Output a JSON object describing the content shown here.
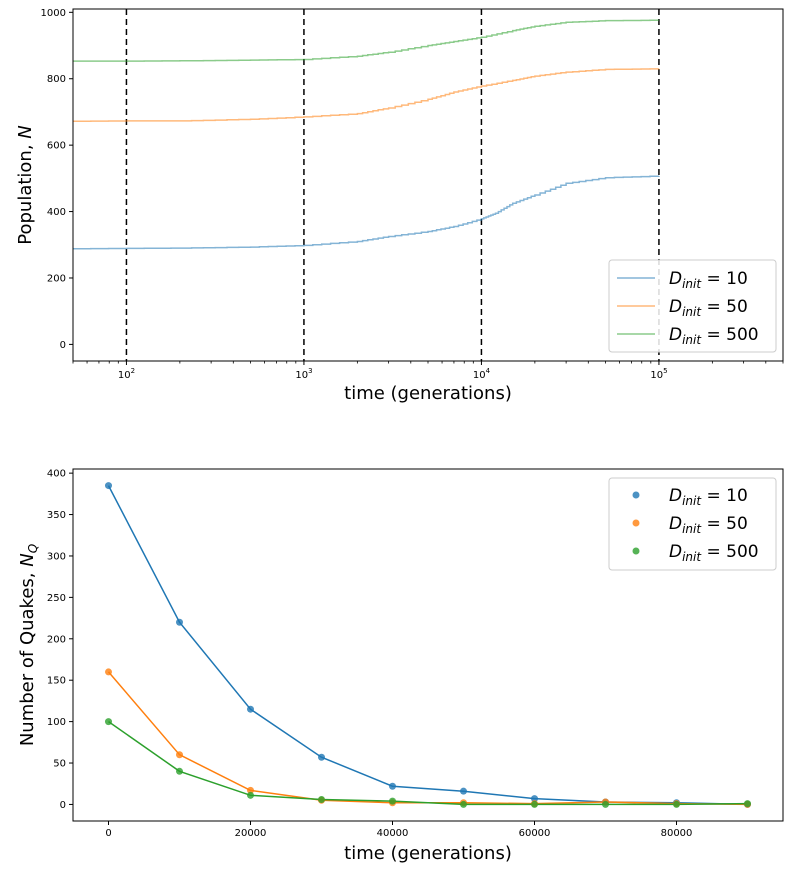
{
  "chart_data": [
    {
      "type": "line",
      "xscale": "log",
      "xlabel": "time (generations)",
      "ylabel": "Population, N",
      "xlim": [
        50,
        500000
      ],
      "ylim": [
        -50,
        1010
      ],
      "xticks": [
        {
          "value": 100,
          "base": "10",
          "exp": "2"
        },
        {
          "value": 1000,
          "base": "10",
          "exp": "3"
        },
        {
          "value": 10000,
          "base": "10",
          "exp": "4"
        },
        {
          "value": 100000,
          "base": "10",
          "exp": "5"
        }
      ],
      "yticks": [
        0,
        200,
        400,
        600,
        800,
        1000
      ],
      "vlines": [
        100,
        1000,
        10000,
        100000
      ],
      "grid": false,
      "legend": {
        "position": "lower-right"
      },
      "series": [
        {
          "name": "D_init = 10",
          "legend_sub": "init",
          "legend_value": "10",
          "color": "#1f77b4",
          "x": [
            50,
            100,
            200,
            500,
            1000,
            2000,
            3000,
            5000,
            7000,
            10000,
            12000,
            15000,
            20000,
            30000,
            50000,
            100000
          ],
          "y": [
            288,
            289,
            290,
            293,
            298,
            310,
            325,
            340,
            355,
            378,
            395,
            425,
            450,
            485,
            502,
            507
          ]
        },
        {
          "name": "D_init = 50",
          "legend_sub": "init",
          "legend_value": "50",
          "color": "#ff7f0e",
          "x": [
            50,
            100,
            200,
            500,
            1000,
            2000,
            3000,
            5000,
            7000,
            10000,
            15000,
            20000,
            30000,
            50000,
            100000
          ],
          "y": [
            672,
            673,
            673,
            678,
            685,
            695,
            712,
            738,
            760,
            778,
            795,
            808,
            820,
            828,
            830
          ]
        },
        {
          "name": "D_init = 500",
          "legend_sub": "init",
          "legend_value": "500",
          "color": "#2ca02c",
          "x": [
            50,
            100,
            200,
            500,
            1000,
            2000,
            3000,
            5000,
            7000,
            10000,
            15000,
            20000,
            30000,
            50000,
            100000
          ],
          "y": [
            853,
            853,
            854,
            856,
            858,
            868,
            880,
            900,
            912,
            925,
            945,
            958,
            970,
            975,
            976
          ]
        }
      ]
    },
    {
      "type": "line",
      "markers": true,
      "xlabel": "time (generations)",
      "ylabel": "Number of Quakes, N",
      "ylabel_sub": "Q",
      "xlim": [
        -5000,
        95000
      ],
      "ylim": [
        -20,
        405
      ],
      "xticks": [
        0,
        20000,
        40000,
        60000,
        80000
      ],
      "yticks": [
        0,
        50,
        100,
        150,
        200,
        250,
        300,
        350,
        400
      ],
      "grid": false,
      "legend": {
        "position": "top-right"
      },
      "x": [
        0,
        10000,
        20000,
        30000,
        40000,
        50000,
        60000,
        70000,
        80000,
        90000
      ],
      "series": [
        {
          "name": "D_init = 10",
          "legend_sub": "init",
          "legend_value": "10",
          "color": "#1f77b4",
          "values": [
            385,
            220,
            115,
            57,
            22,
            16,
            7,
            3,
            2,
            0
          ]
        },
        {
          "name": "D_init = 50",
          "legend_sub": "init",
          "legend_value": "50",
          "color": "#ff7f0e",
          "values": [
            160,
            60,
            17,
            5,
            2,
            2,
            1,
            3,
            1,
            0
          ]
        },
        {
          "name": "D_init = 500",
          "legend_sub": "init",
          "legend_value": "500",
          "color": "#2ca02c",
          "values": [
            100,
            40,
            11,
            6,
            4,
            0,
            0,
            0,
            0,
            1
          ]
        }
      ]
    }
  ]
}
